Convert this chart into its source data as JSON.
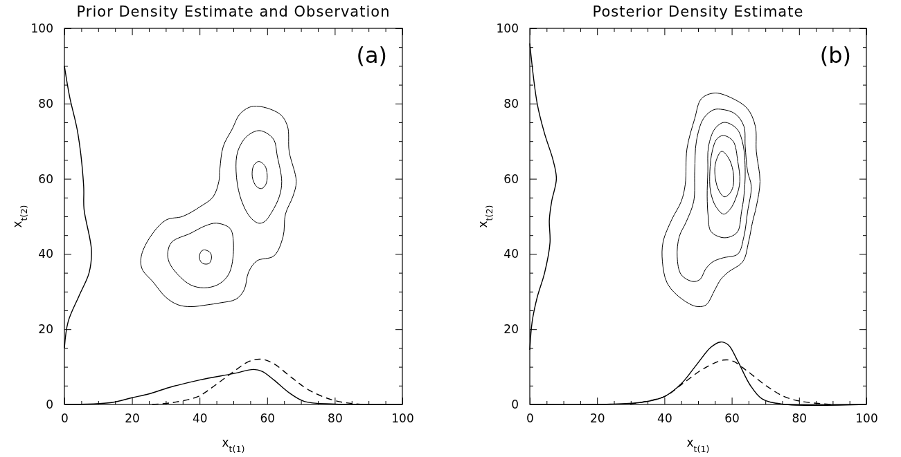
{
  "chart_data": [
    {
      "type": "line",
      "title": "Prior Density Estimate and Observation",
      "xlabel": "x$_{t(1)}$",
      "ylabel": "x$_{t(2)}$",
      "annotations": [
        "(a)"
      ],
      "xlim": [
        0,
        100
      ],
      "ylim": [
        0,
        100
      ],
      "xticks": [
        0,
        {
          "value": 5,
          "label": null
        },
        {
          "value": 10,
          "label": null
        },
        {
          "value": 15,
          "label": null
        },
        20,
        {
          "value": 25,
          "label": null
        },
        {
          "value": 30,
          "label": null
        },
        {
          "value": 35,
          "label": null
        },
        40,
        {
          "value": 45,
          "label": null
        },
        {
          "value": 50,
          "label": null
        },
        {
          "value": 55,
          "label": null
        },
        60,
        {
          "value": 65,
          "label": null
        },
        {
          "value": 70,
          "label": null
        },
        {
          "value": 75,
          "label": null
        },
        80,
        {
          "value": 85,
          "label": null
        },
        {
          "value": 90,
          "label": null
        },
        {
          "value": 95,
          "label": null
        },
        100
      ],
      "yticks": [
        0,
        {
          "value": 5,
          "label": null
        },
        {
          "value": 10,
          "label": null
        },
        {
          "value": 15,
          "label": null
        },
        20,
        {
          "value": 25,
          "label": null
        },
        {
          "value": 30,
          "label": null
        },
        {
          "value": 35,
          "label": null
        },
        40,
        {
          "value": 45,
          "label": null
        },
        {
          "value": 50,
          "label": null
        },
        {
          "value": 55,
          "label": null
        },
        60,
        {
          "value": 65,
          "label": null
        },
        {
          "value": 70,
          "label": null
        },
        {
          "value": 75,
          "label": null
        },
        80,
        {
          "value": 85,
          "label": null
        },
        {
          "value": 90,
          "label": null
        },
        {
          "value": 95,
          "label": null
        },
        100
      ],
      "grid": false,
      "marker": "none",
      "series": [
        {
          "color": "#000000",
          "line_style": "solid",
          "x": [
            0,
            14,
            20,
            25,
            31,
            40,
            50,
            56,
            58.5,
            62,
            66.5,
            71,
            80,
            100
          ],
          "values": [
            0,
            0.5,
            1.8,
            2.8,
            4.5,
            6.5,
            8.2,
            9.3,
            8.8,
            6.5,
            3.1,
            0.8,
            0.1,
            0
          ]
        },
        {
          "color": "#000000",
          "line_style": "dashed",
          "x": [
            26,
            32,
            39.5,
            44.6,
            49.7,
            54.8,
            58.5,
            62,
            67.3,
            72.4,
            79.7,
            87,
            100
          ],
          "values": [
            0,
            0.5,
            2.1,
            5.1,
            8.5,
            11.5,
            12,
            10.8,
            7.1,
            3.8,
            1.1,
            0.1,
            0
          ]
        },
        {
          "color": "#000000",
          "line_style": "solid",
          "x": [
            0,
            1.5,
            4,
            5.7,
            5.8,
            8,
            7.3,
            4.4,
            1.1,
            0
          ],
          "values": [
            90,
            82,
            72,
            58,
            52,
            41,
            35,
            29,
            22,
            15
          ]
        }
      ]
    },
    {
      "type": "line",
      "title": "Posterior Density Estimate",
      "xlabel": "x$_{t(1)}$",
      "ylabel": "x$_{t(2)}$",
      "annotations": [
        "(b)"
      ],
      "xlim": [
        0,
        100
      ],
      "ylim": [
        0,
        100
      ],
      "xticks": [
        0,
        {
          "value": 5,
          "label": null
        },
        {
          "value": 10,
          "label": null
        },
        {
          "value": 15,
          "label": null
        },
        20,
        {
          "value": 25,
          "label": null
        },
        {
          "value": 30,
          "label": null
        },
        {
          "value": 35,
          "label": null
        },
        40,
        {
          "value": 45,
          "label": null
        },
        {
          "value": 50,
          "label": null
        },
        {
          "value": 55,
          "label": null
        },
        60,
        {
          "value": 65,
          "label": null
        },
        {
          "value": 70,
          "label": null
        },
        {
          "value": 75,
          "label": null
        },
        80,
        {
          "value": 85,
          "label": null
        },
        {
          "value": 90,
          "label": null
        },
        {
          "value": 95,
          "label": null
        },
        100
      ],
      "yticks": [
        0,
        {
          "value": 5,
          "label": null
        },
        {
          "value": 10,
          "label": null
        },
        {
          "value": 15,
          "label": null
        },
        20,
        {
          "value": 25,
          "label": null
        },
        {
          "value": 30,
          "label": null
        },
        {
          "value": 35,
          "label": null
        },
        40,
        {
          "value": 45,
          "label": null
        },
        {
          "value": 50,
          "label": null
        },
        {
          "value": 55,
          "label": null
        },
        60,
        {
          "value": 65,
          "label": null
        },
        {
          "value": 70,
          "label": null
        },
        {
          "value": 75,
          "label": null
        },
        80,
        {
          "value": 85,
          "label": null
        },
        {
          "value": 90,
          "label": null
        },
        {
          "value": 95,
          "label": null
        },
        100
      ],
      "grid": false,
      "marker": "none",
      "series": [
        {
          "color": "#000000",
          "line_style": "solid",
          "x": [
            0,
            24,
            33.5,
            40,
            45,
            49.5,
            53.8,
            56.7,
            59,
            61.8,
            65.5,
            69,
            75,
            100
          ],
          "values": [
            0,
            0.1,
            0.6,
            2.1,
            5.5,
            10.5,
            15.2,
            16.6,
            15.8,
            11.5,
            5.1,
            1.5,
            0.1,
            0
          ]
        },
        {
          "color": "#000000",
          "line_style": "dashed",
          "x": [
            29.8,
            40,
            45.8,
            51.6,
            57.5,
            60.4,
            64.7,
            70.5,
            75.6,
            80.7,
            89.5
          ],
          "values": [
            0.1,
            2.1,
            5.8,
            9.5,
            11.8,
            11.5,
            8.8,
            4.8,
            2.1,
            0.8,
            0
          ]
        },
        {
          "color": "#000000",
          "line_style": "solid",
          "x": [
            0,
            2.2,
            4.4,
            6.9,
            7.9,
            6.5,
            5.8,
            6,
            4.4,
            2.2,
            0.7,
            0
          ],
          "values": [
            96,
            80,
            72,
            65,
            60,
            54,
            49,
            43,
            35,
            28.5,
            22,
            14.5
          ]
        }
      ]
    }
  ]
}
